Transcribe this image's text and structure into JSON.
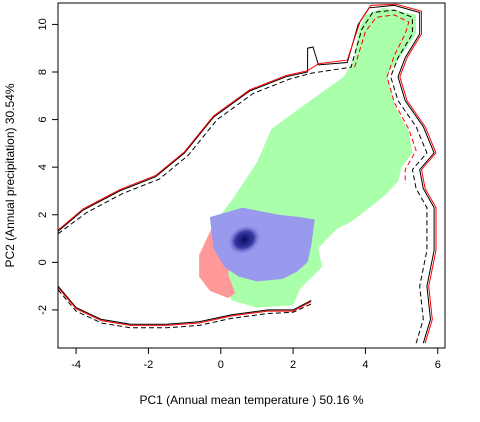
{
  "chart_data": {
    "type": "heatmap",
    "title": "",
    "xlabel": "PC1 (Annual mean temperature ) 50.16 %",
    "ylabel": "PC2 (Annual precipitation) 30.54%",
    "xlim": [
      -4.5,
      6.2
    ],
    "ylim": [
      -3.6,
      10.9
    ],
    "x_ticks": [
      -4,
      -2,
      0,
      2,
      4,
      6
    ],
    "y_ticks": [
      -2,
      0,
      2,
      4,
      6,
      8,
      10
    ],
    "grid": false,
    "legend": "none",
    "colors": {
      "green": "#aaffaa",
      "red": "#ff9999",
      "blue": "#9999ee",
      "dark_blue": "#10106a",
      "contour_black": "#000000",
      "contour_red": "#ff0000"
    },
    "regions": {
      "green_niche": [
        [
          -0.2,
          1.6
        ],
        [
          0.3,
          2.6
        ],
        [
          1.0,
          4.2
        ],
        [
          1.4,
          5.6
        ],
        [
          2.3,
          6.6
        ],
        [
          3.4,
          7.8
        ],
        [
          3.7,
          8.6
        ],
        [
          3.8,
          9.7
        ],
        [
          4.0,
          10.4
        ],
        [
          4.5,
          10.7
        ],
        [
          5.4,
          10.4
        ],
        [
          5.4,
          9.6
        ],
        [
          5.0,
          8.7
        ],
        [
          4.6,
          7.9
        ],
        [
          4.8,
          6.6
        ],
        [
          5.2,
          5.5
        ],
        [
          5.3,
          4.6
        ],
        [
          5.0,
          4.0
        ],
        [
          4.9,
          3.4
        ],
        [
          4.6,
          2.9
        ],
        [
          4.2,
          2.4
        ],
        [
          3.6,
          1.7
        ],
        [
          3.2,
          1.4
        ],
        [
          2.7,
          0.6
        ],
        [
          2.8,
          -0.2
        ],
        [
          2.2,
          -1.1
        ],
        [
          2.0,
          -1.8
        ],
        [
          1.0,
          -1.9
        ],
        [
          0.3,
          -1.6
        ],
        [
          0.0,
          -0.6
        ],
        [
          -0.3,
          0.5
        ]
      ],
      "red_niche": [
        [
          -0.6,
          0.3
        ],
        [
          -0.2,
          1.6
        ],
        [
          0.3,
          2.0
        ],
        [
          0.4,
          0.6
        ],
        [
          0.2,
          -0.5
        ],
        [
          0.4,
          -1.3
        ],
        [
          0.2,
          -1.5
        ],
        [
          -0.3,
          -1.2
        ],
        [
          -0.6,
          -0.6
        ]
      ],
      "blue_overlap": [
        [
          -0.3,
          1.9
        ],
        [
          0.6,
          2.3
        ],
        [
          1.6,
          2.0
        ],
        [
          2.2,
          1.9
        ],
        [
          2.6,
          1.8
        ],
        [
          2.5,
          0.7
        ],
        [
          2.4,
          0.0
        ],
        [
          2.1,
          -0.4
        ],
        [
          1.7,
          -0.7
        ],
        [
          1.0,
          -0.8
        ],
        [
          0.5,
          -0.6
        ],
        [
          0.1,
          -0.2
        ],
        [
          -0.2,
          0.6
        ]
      ],
      "dark_core": {
        "center": [
          0.65,
          0.95
        ],
        "radius_x": 0.5,
        "radius_y": 0.6
      }
    },
    "contours": [
      {
        "color": "#000000",
        "dash": "solid",
        "points": [
          [
            -4.5,
            1.3
          ],
          [
            -3.8,
            2.2
          ],
          [
            -2.8,
            3.0
          ],
          [
            -1.8,
            3.6
          ],
          [
            -1.0,
            4.6
          ],
          [
            -0.2,
            6.1
          ],
          [
            0.8,
            7.2
          ],
          [
            1.8,
            7.8
          ],
          [
            2.4,
            8.0
          ],
          [
            2.4,
            9.0
          ],
          [
            2.55,
            9.05
          ],
          [
            2.7,
            8.3
          ],
          [
            3.5,
            8.4
          ],
          [
            3.8,
            10.0
          ],
          [
            4.1,
            10.7
          ],
          [
            4.8,
            10.8
          ],
          [
            5.5,
            10.5
          ],
          [
            5.5,
            9.6
          ],
          [
            5.1,
            8.6
          ],
          [
            4.9,
            7.8
          ],
          [
            5.1,
            6.8
          ],
          [
            5.6,
            5.7
          ],
          [
            5.9,
            4.6
          ],
          [
            5.5,
            3.9
          ],
          [
            5.6,
            3.1
          ],
          [
            5.9,
            2.3
          ],
          [
            5.9,
            0.5
          ],
          [
            5.7,
            -1.0
          ],
          [
            5.8,
            -2.4
          ],
          [
            5.6,
            -3.4
          ]
        ]
      },
      {
        "color": "#ff0000",
        "dash": "solid",
        "points": [
          [
            -4.5,
            1.35
          ],
          [
            -3.8,
            2.25
          ],
          [
            -2.8,
            3.05
          ],
          [
            -1.8,
            3.65
          ],
          [
            -1.0,
            4.65
          ],
          [
            -0.2,
            6.15
          ],
          [
            0.8,
            7.25
          ],
          [
            1.8,
            7.85
          ],
          [
            2.4,
            8.05
          ],
          [
            2.7,
            8.35
          ],
          [
            3.5,
            8.5
          ],
          [
            3.85,
            10.1
          ],
          [
            4.15,
            10.8
          ],
          [
            4.85,
            10.85
          ],
          [
            5.55,
            10.55
          ],
          [
            5.55,
            9.6
          ],
          [
            5.15,
            8.6
          ],
          [
            4.95,
            7.8
          ],
          [
            5.15,
            6.8
          ],
          [
            5.65,
            5.7
          ],
          [
            5.95,
            4.6
          ],
          [
            5.55,
            3.9
          ],
          [
            5.65,
            3.1
          ],
          [
            5.95,
            2.3
          ],
          [
            5.95,
            0.5
          ],
          [
            5.75,
            -1.0
          ],
          [
            5.85,
            -2.4
          ],
          [
            5.65,
            -3.4
          ]
        ]
      },
      {
        "color": "#000000",
        "dash": "dashed",
        "points": [
          [
            -4.5,
            1.2
          ],
          [
            -3.7,
            2.1
          ],
          [
            -2.7,
            2.9
          ],
          [
            -1.7,
            3.5
          ],
          [
            -0.9,
            4.5
          ],
          [
            -0.1,
            6.0
          ],
          [
            0.9,
            7.1
          ],
          [
            1.9,
            7.7
          ],
          [
            2.5,
            7.95
          ],
          [
            3.6,
            8.2
          ],
          [
            3.9,
            9.8
          ],
          [
            4.2,
            10.5
          ],
          [
            4.8,
            10.6
          ],
          [
            5.3,
            10.3
          ],
          [
            5.3,
            9.6
          ],
          [
            4.9,
            8.6
          ],
          [
            4.7,
            7.8
          ],
          [
            4.9,
            6.8
          ],
          [
            5.4,
            5.7
          ],
          [
            5.7,
            4.6
          ],
          [
            5.3,
            3.9
          ],
          [
            5.4,
            3.1
          ],
          [
            5.7,
            2.3
          ],
          [
            5.7,
            0.5
          ],
          [
            5.5,
            -1.0
          ],
          [
            5.6,
            -2.4
          ],
          [
            5.4,
            -3.4
          ]
        ]
      },
      {
        "color": "#ff0000",
        "dash": "dashed",
        "points": [
          [
            3.7,
            8.2
          ],
          [
            4.0,
            9.7
          ],
          [
            4.3,
            10.3
          ],
          [
            4.8,
            10.4
          ],
          [
            5.2,
            10.1
          ],
          [
            5.1,
            9.6
          ],
          [
            4.8,
            8.7
          ],
          [
            4.6,
            7.8
          ],
          [
            4.8,
            6.7
          ],
          [
            5.2,
            5.6
          ],
          [
            5.4,
            4.7
          ],
          [
            5.1,
            3.9
          ],
          [
            5.1,
            3.3
          ]
        ]
      },
      {
        "color": "#000000",
        "dash": "solid",
        "points": [
          [
            -4.5,
            -1.0
          ],
          [
            -4.0,
            -1.9
          ],
          [
            -3.3,
            -2.4
          ],
          [
            -2.5,
            -2.6
          ],
          [
            -1.5,
            -2.6
          ],
          [
            -0.6,
            -2.5
          ],
          [
            0.3,
            -2.2
          ],
          [
            1.3,
            -2.0
          ],
          [
            2.0,
            -2.0
          ],
          [
            2.5,
            -1.6
          ]
        ]
      },
      {
        "color": "#ff0000",
        "dash": "solid",
        "points": [
          [
            -4.5,
            -1.05
          ],
          [
            -4.0,
            -1.95
          ],
          [
            -3.3,
            -2.45
          ],
          [
            -2.5,
            -2.65
          ],
          [
            -1.5,
            -2.65
          ],
          [
            -0.6,
            -2.55
          ],
          [
            0.3,
            -2.25
          ],
          [
            1.3,
            -2.05
          ],
          [
            2.0,
            -2.05
          ],
          [
            2.5,
            -1.65
          ]
        ]
      },
      {
        "color": "#000000",
        "dash": "dashed",
        "points": [
          [
            -4.5,
            -1.15
          ],
          [
            -4.0,
            -2.05
          ],
          [
            -3.3,
            -2.55
          ],
          [
            -2.5,
            -2.75
          ],
          [
            -1.5,
            -2.75
          ],
          [
            -0.6,
            -2.65
          ],
          [
            0.3,
            -2.35
          ],
          [
            1.3,
            -2.15
          ],
          [
            2.0,
            -2.1
          ],
          [
            2.5,
            -1.75
          ]
        ]
      }
    ]
  }
}
